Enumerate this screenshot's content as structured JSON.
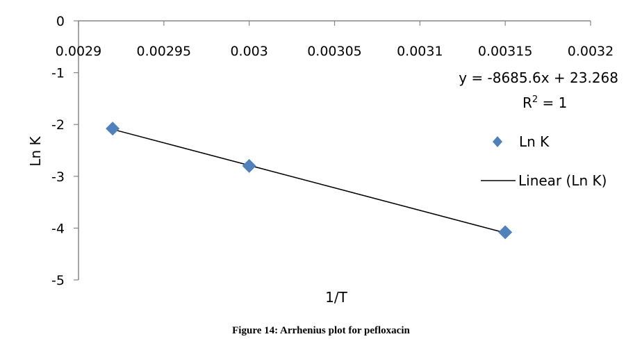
{
  "chart_data": {
    "type": "scatter",
    "x_label": "1/T",
    "y_label": "Ln K",
    "xlim": [
      0.0029,
      0.0032
    ],
    "ylim": [
      -5,
      0
    ],
    "x_ticks": [
      "0.0029",
      "0.00295",
      "0.003",
      "0.00305",
      "0.0031",
      "0.00315",
      "0.0032"
    ],
    "y_ticks": [
      "0",
      "-1",
      "-2",
      "-3",
      "-4",
      "-5"
    ],
    "series": [
      {
        "name": "Ln K",
        "marker": "diamond",
        "color": "#4F81BD",
        "x": [
          0.00292,
          0.003,
          0.00315
        ],
        "y": [
          -2.08,
          -2.8,
          -4.08
        ]
      }
    ],
    "trendline": {
      "name": "Linear (Ln K)",
      "equation": "y = -8685.6x + 23.268",
      "r_squared_prefix": "R",
      "r_squared_sup": "2",
      "r_squared_value": " = 1",
      "x_range": [
        0.00292,
        0.00315
      ],
      "slope": -8685.6,
      "intercept": 23.268,
      "color": "#000000"
    },
    "legend_position": "right",
    "grid": false
  },
  "caption": "Figure 14: Arrhenius plot for pefloxacin"
}
